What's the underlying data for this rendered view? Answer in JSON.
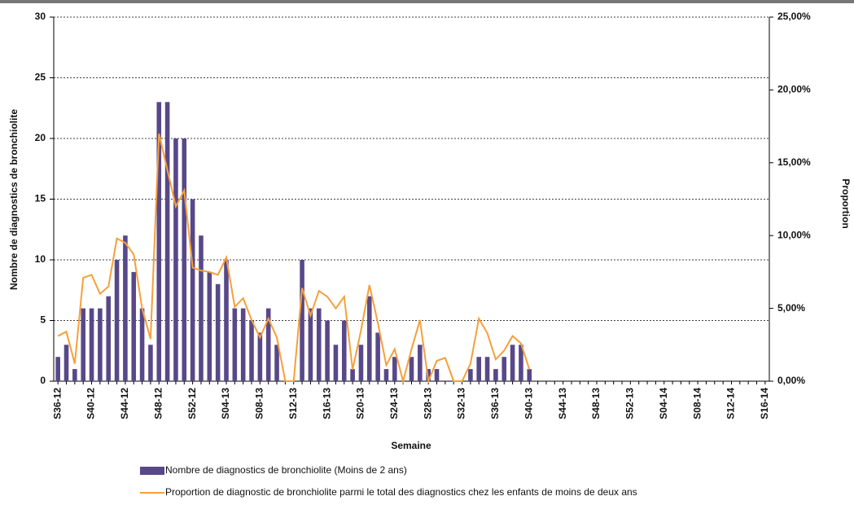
{
  "chart_data": {
    "type": "bar_line",
    "x_label": "Semaine",
    "y_label": "Nombre de diagnostics de bronchiolite",
    "y2_label": "Proportion",
    "categories": [
      "S36-12",
      null,
      null,
      null,
      "S40-12",
      null,
      null,
      null,
      "S44-12",
      null,
      null,
      null,
      "S48-12",
      null,
      null,
      null,
      "S52-12",
      null,
      null,
      null,
      "S04-13",
      null,
      null,
      null,
      "S08-13",
      null,
      null,
      null,
      "S12-13",
      null,
      null,
      null,
      "S16-13",
      null,
      null,
      null,
      "S20-13",
      null,
      null,
      null,
      "S24-13",
      null,
      null,
      null,
      "S28-13",
      null,
      null,
      null,
      "S32-13",
      null,
      null,
      null,
      "S36-13",
      null,
      null,
      null,
      "S40-13",
      null,
      null,
      null,
      "S44-13",
      null,
      null,
      null,
      "S48-13",
      null,
      null,
      null,
      "S52-13",
      null,
      null,
      null,
      "S04-14",
      null,
      null,
      null,
      "S08-14",
      null,
      null,
      null,
      "S12-14",
      null,
      null,
      null,
      "S16-14"
    ],
    "series": [
      {
        "name": "Nombre de diagnostics de bronchiolite (Moins de 2 ans)",
        "type": "bar",
        "color": "#58488a",
        "values": [
          2,
          3,
          1,
          6,
          6,
          6,
          7,
          10,
          12,
          9,
          6,
          3,
          23,
          23,
          20,
          20,
          15,
          12,
          9,
          8,
          10,
          6,
          6,
          5,
          4,
          6,
          3,
          0,
          0,
          10,
          6,
          6,
          5,
          3,
          5,
          1,
          3,
          7,
          4,
          1,
          2,
          0,
          2,
          3,
          1,
          1,
          0,
          0,
          0,
          1,
          2,
          2,
          1,
          2,
          3,
          3,
          1,
          null,
          null,
          null,
          null,
          null,
          null,
          null,
          null,
          null,
          null,
          null,
          null,
          null,
          null,
          null,
          null,
          null,
          null,
          null,
          null,
          null,
          null,
          null,
          null,
          null,
          null,
          null,
          null
        ]
      },
      {
        "name": "Proportion de diagnostic de bronchiolite parmi le total des diagnostics chez les enfants de moins de deux ans",
        "type": "line",
        "axis": "y2",
        "color": "#f5a03a",
        "values": [
          3.1,
          3.4,
          1.2,
          7.1,
          7.3,
          6.0,
          6.5,
          9.8,
          9.5,
          8.7,
          5.0,
          2.9,
          17.0,
          14.5,
          12.0,
          13.1,
          7.8,
          7.6,
          7.5,
          7.3,
          8.5,
          5.1,
          5.7,
          4.2,
          3.0,
          4.3,
          3.0,
          0,
          0,
          6.4,
          4.5,
          6.2,
          5.8,
          5.0,
          5.8,
          0.8,
          3.5,
          6.6,
          4.0,
          1.1,
          2.2,
          0,
          2.2,
          4.2,
          0,
          1.4,
          1.6,
          0,
          0,
          1.2,
          4.3,
          3.3,
          1.5,
          2.1,
          3.1,
          2.6,
          0.8,
          null,
          null,
          null,
          null,
          null,
          null,
          null,
          null,
          null,
          null,
          null,
          null,
          null,
          null,
          null,
          null,
          null,
          null,
          null,
          null,
          null,
          null,
          null,
          null,
          null,
          null,
          null,
          null
        ]
      }
    ],
    "ylim": [
      0,
      30
    ],
    "yticks": [
      0,
      5,
      10,
      15,
      20,
      25,
      30
    ],
    "y2lim": [
      0,
      25
    ],
    "y2ticks": [
      {
        "value": 0,
        "label": "0,00%"
      },
      {
        "value": 5,
        "label": "5,00%"
      },
      {
        "value": 10,
        "label": "10,00%"
      },
      {
        "value": 15,
        "label": "15,00%"
      },
      {
        "value": 20,
        "label": "20,00%"
      },
      {
        "value": 25,
        "label": "25,00%"
      }
    ],
    "grid": true
  }
}
